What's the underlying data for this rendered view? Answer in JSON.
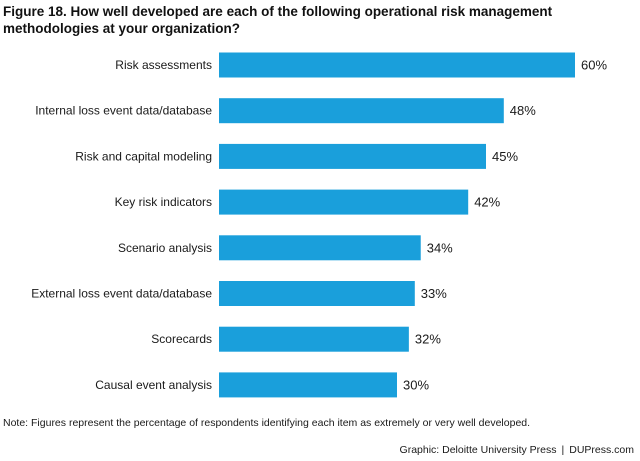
{
  "header": {
    "title": "Figure 18. How well developed are each of the following operational risk management methodologies at your organization?"
  },
  "chart_data": {
    "type": "bar",
    "orientation": "horizontal",
    "categories": [
      "Risk assessments",
      "Internal loss event data/database",
      "Risk and capital modeling",
      "Key risk indicators",
      "Scenario analysis",
      "External loss event data/database",
      "Scorecards",
      "Causal event analysis"
    ],
    "values": [
      60,
      48,
      45,
      42,
      34,
      33,
      32,
      30
    ],
    "value_labels": [
      "60%",
      "48%",
      "45%",
      "42%",
      "34%",
      "33%",
      "32%",
      "30%"
    ],
    "title": "",
    "xlabel": "",
    "ylabel": "",
    "xlim": [
      0,
      60
    ],
    "grid": false,
    "legend": "none",
    "bar_color": "#1a9fdb"
  },
  "footer": {
    "note": "Note: Figures represent the percentage of respondents identifying each item as extremely or very well developed.",
    "credit_left": "Graphic: Deloitte University Press",
    "credit_separator": "|",
    "credit_right": "DUPress.com"
  }
}
